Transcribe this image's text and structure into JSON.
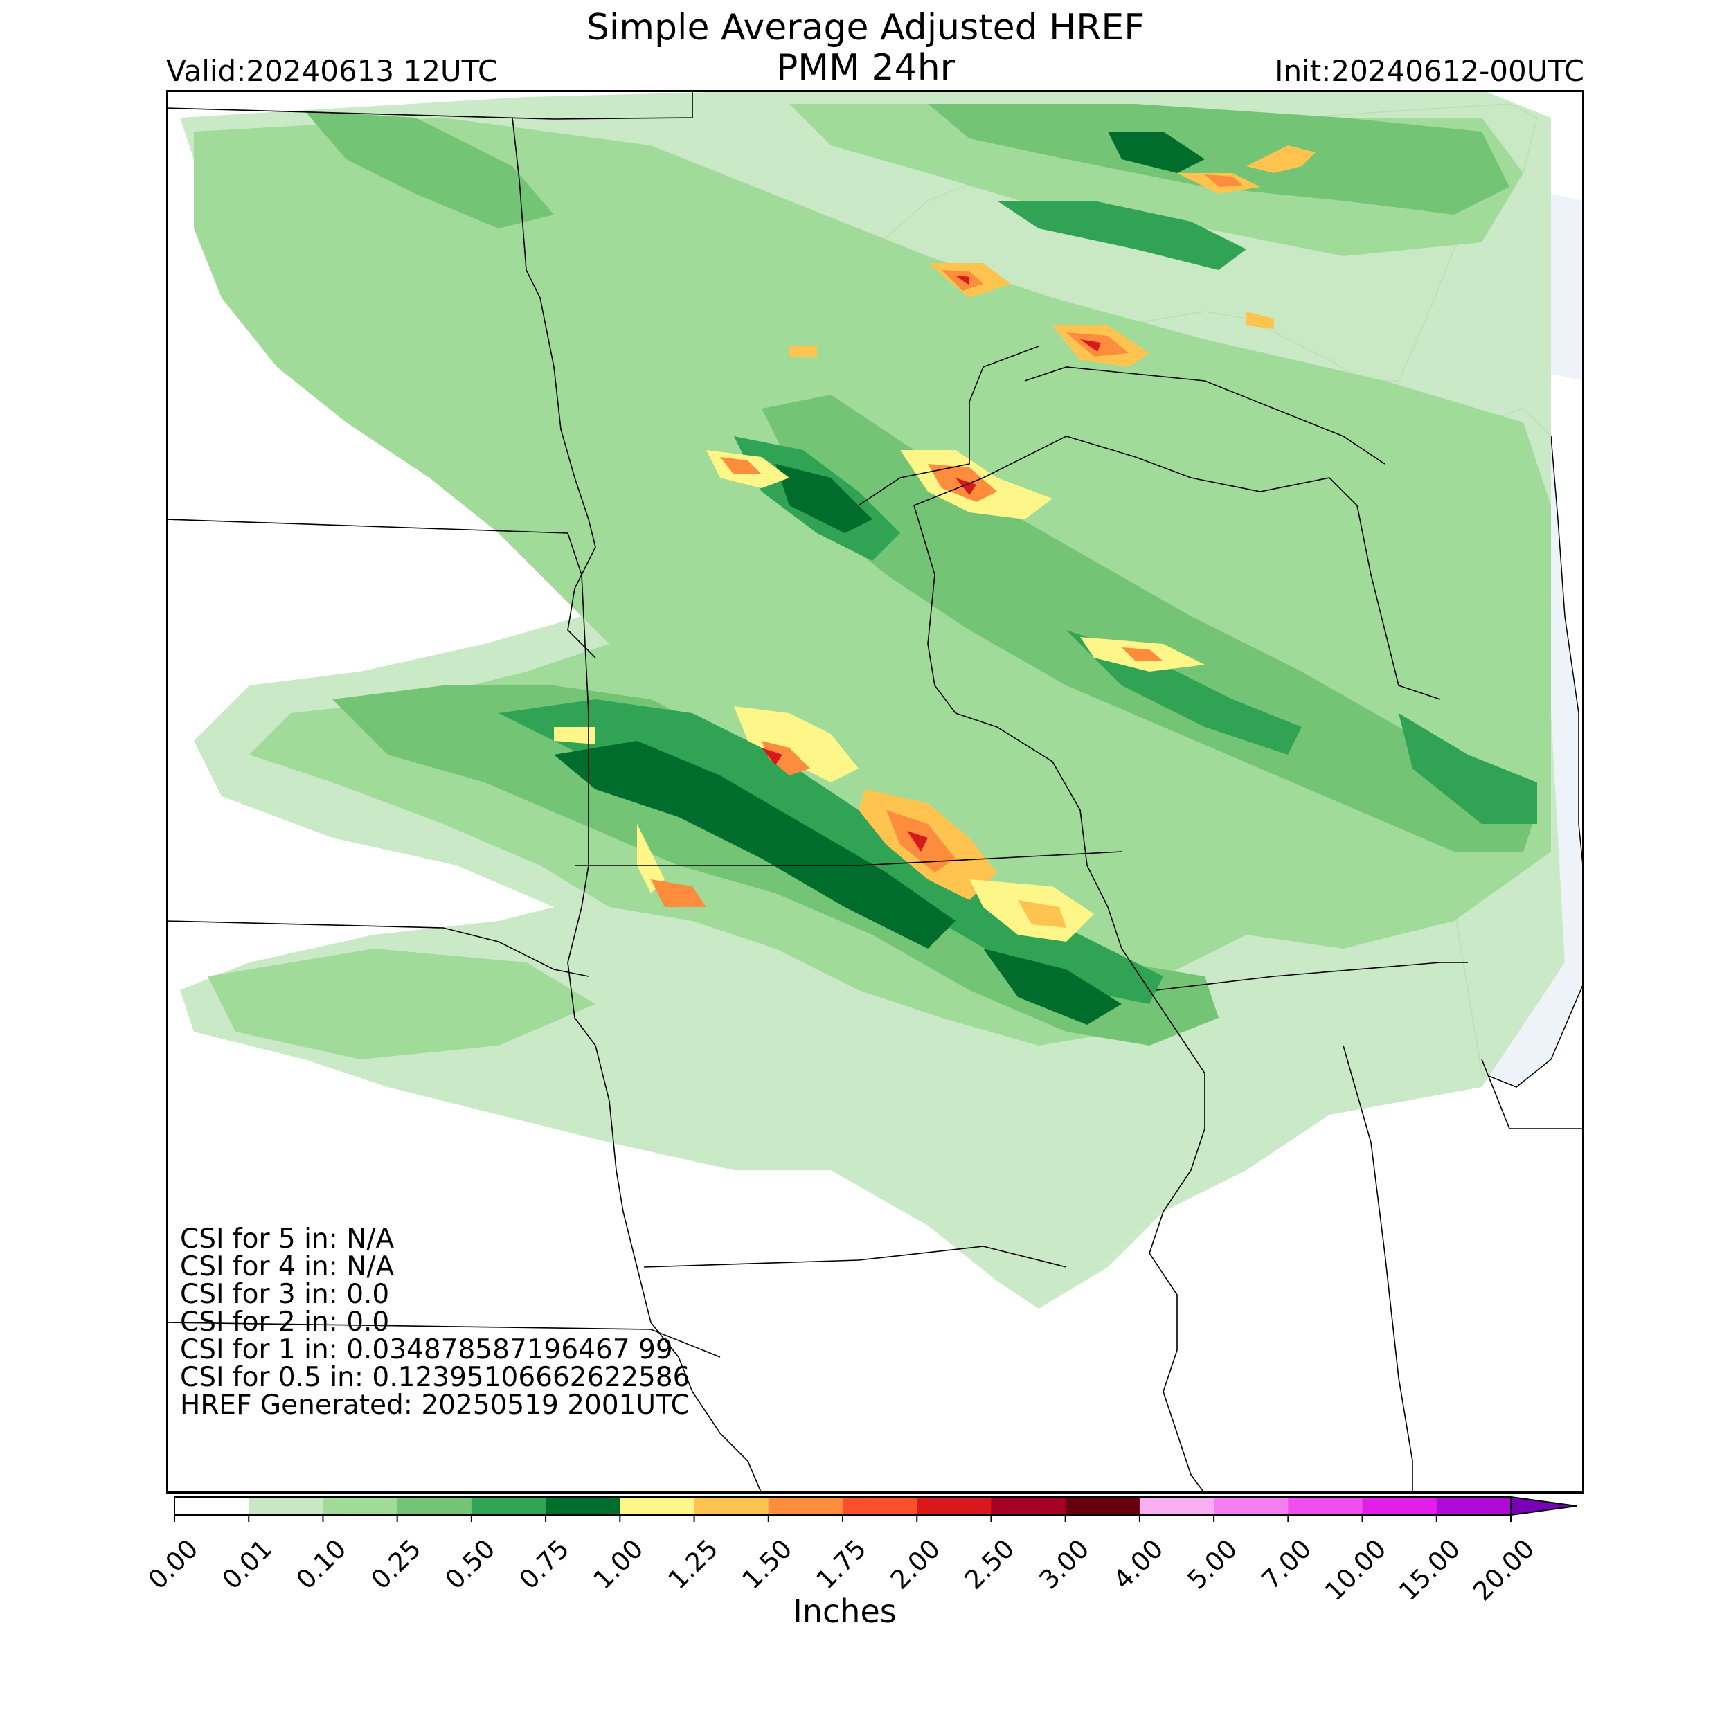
{
  "header": {
    "title_line1": "Simple Average Adjusted HREF",
    "title_line2": "PMM 24hr",
    "valid": "Valid:20240613 12UTC",
    "init": "Init:20240612-00UTC"
  },
  "stats": [
    "CSI for 5 in: N/A",
    "CSI for 4 in: N/A",
    "CSI for 3 in: 0.0",
    "CSI for 2 in: 0.0",
    "CSI for 1 in: 0.034878587196467 99",
    "CSI for 0.5 in: 0.12395106662622586",
    "HREF Generated: 20250519 2001UTC"
  ],
  "colorbar": {
    "label": "Inches",
    "ticks": [
      "0.00",
      "0.01",
      "0.10",
      "0.25",
      "0.50",
      "0.75",
      "1.00",
      "1.25",
      "1.50",
      "1.75",
      "2.00",
      "2.50",
      "3.00",
      "4.00",
      "5.00",
      "7.00",
      "10.00",
      "15.00",
      "20.00"
    ],
    "colors": [
      "#ffffff",
      "#c7e8c3",
      "#a1db9a",
      "#74c476",
      "#31a354",
      "#006d2c",
      "#fff689",
      "#fec44f",
      "#fd8d3c",
      "#fb4f2b",
      "#d7191c",
      "#a50026",
      "#67000d",
      "#f8aef0",
      "#f47ef0",
      "#f14ef0",
      "#e21fe8",
      "#b00ad6",
      "#7a00b8"
    ]
  },
  "map": {
    "precip_colors": {
      "light": "#c7e8c3",
      "low": "#a1db9a",
      "mid": "#74c476",
      "high": "#31a354",
      "dark": "#006d2c",
      "yellow": "#fff689",
      "orange": "#fec44f",
      "red_orange": "#fd8d3c",
      "red": "#d7191c"
    },
    "water_color": "#eef3fa"
  }
}
